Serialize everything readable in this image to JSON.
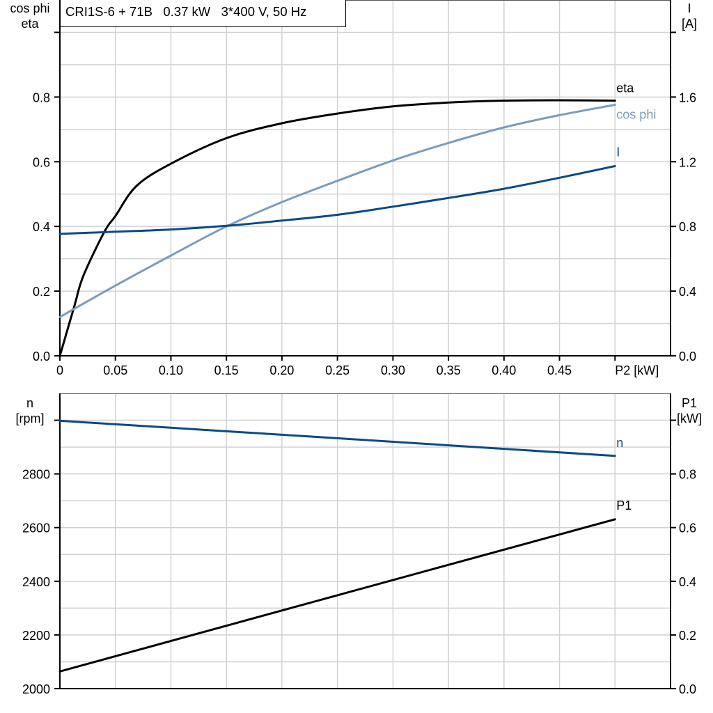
{
  "title": "CRI1S-6 + 71B   0.37 kW   3*400 V, 50 Hz",
  "colors": {
    "eta": "#000000",
    "cos_phi": "#7a9cbc",
    "I": "#0b4a86",
    "n": "#0b4a86",
    "P1": "#000000",
    "grid": "#cfd2d6"
  },
  "chart_data": [
    {
      "type": "line",
      "left_axis_label": [
        "cos phi",
        "eta"
      ],
      "right_axis_label": [
        "I",
        "[A]"
      ],
      "xlabel": "P2 [kW]",
      "x_ticks": [
        "0",
        "0.05",
        "0.10",
        "0.15",
        "0.20",
        "0.25",
        "0.30",
        "0.35",
        "0.40",
        "0.45"
      ],
      "y_left_ticks": [
        "0.0",
        "0.2",
        "0.4",
        "0.6",
        "0.8"
      ],
      "y_right_ticks": [
        "0.0",
        "0.4",
        "0.8",
        "1.2",
        "1.6"
      ],
      "xlim": [
        0,
        0.55
      ],
      "ylim_left": [
        0,
        1.1
      ],
      "ylim_right": [
        0,
        2.2
      ],
      "grid": true,
      "series": [
        {
          "name": "eta",
          "axis": "left",
          "x": [
            0,
            0.013,
            0.021,
            0.04,
            0.05,
            0.069,
            0.1,
            0.15,
            0.2,
            0.25,
            0.3,
            0.35,
            0.4,
            0.45,
            0.5
          ],
          "y": [
            0,
            0.153,
            0.246,
            0.383,
            0.432,
            0.525,
            0.594,
            0.673,
            0.719,
            0.749,
            0.771,
            0.783,
            0.789,
            0.79,
            0.789
          ]
        },
        {
          "name": "cos phi",
          "axis": "left",
          "x": [
            0,
            0.05,
            0.1,
            0.15,
            0.2,
            0.25,
            0.3,
            0.35,
            0.4,
            0.45,
            0.5
          ],
          "y": [
            0.12,
            0.217,
            0.31,
            0.4,
            0.475,
            0.541,
            0.604,
            0.658,
            0.706,
            0.744,
            0.776
          ]
        },
        {
          "name": "I",
          "axis": "right",
          "x": [
            0,
            0.05,
            0.1,
            0.15,
            0.2,
            0.25,
            0.3,
            0.35,
            0.4,
            0.45,
            0.5
          ],
          "y": [
            0.754,
            0.767,
            0.781,
            0.804,
            0.836,
            0.872,
            0.922,
            0.976,
            1.033,
            1.101,
            1.173
          ]
        }
      ]
    },
    {
      "type": "line",
      "left_axis_label": [
        "n",
        "[rpm]"
      ],
      "right_axis_label": [
        "P1",
        "[kW]"
      ],
      "y_left_ticks": [
        "2000",
        "2200",
        "2400",
        "2600",
        "2800"
      ],
      "y_right_ticks": [
        "0.0",
        "0.2",
        "0.4",
        "0.6",
        "0.8"
      ],
      "xlim": [
        0,
        0.55
      ],
      "ylim_left": [
        2000,
        3100
      ],
      "ylim_right": [
        0,
        1.1
      ],
      "grid": true,
      "series": [
        {
          "name": "n",
          "axis": "left",
          "x": [
            0,
            0.25,
            0.5
          ],
          "y": [
            2998,
            2933,
            2867
          ]
        },
        {
          "name": "P1",
          "axis": "right",
          "x": [
            0,
            0.25,
            0.5
          ],
          "y": [
            0.064,
            0.348,
            0.631
          ]
        }
      ]
    }
  ]
}
